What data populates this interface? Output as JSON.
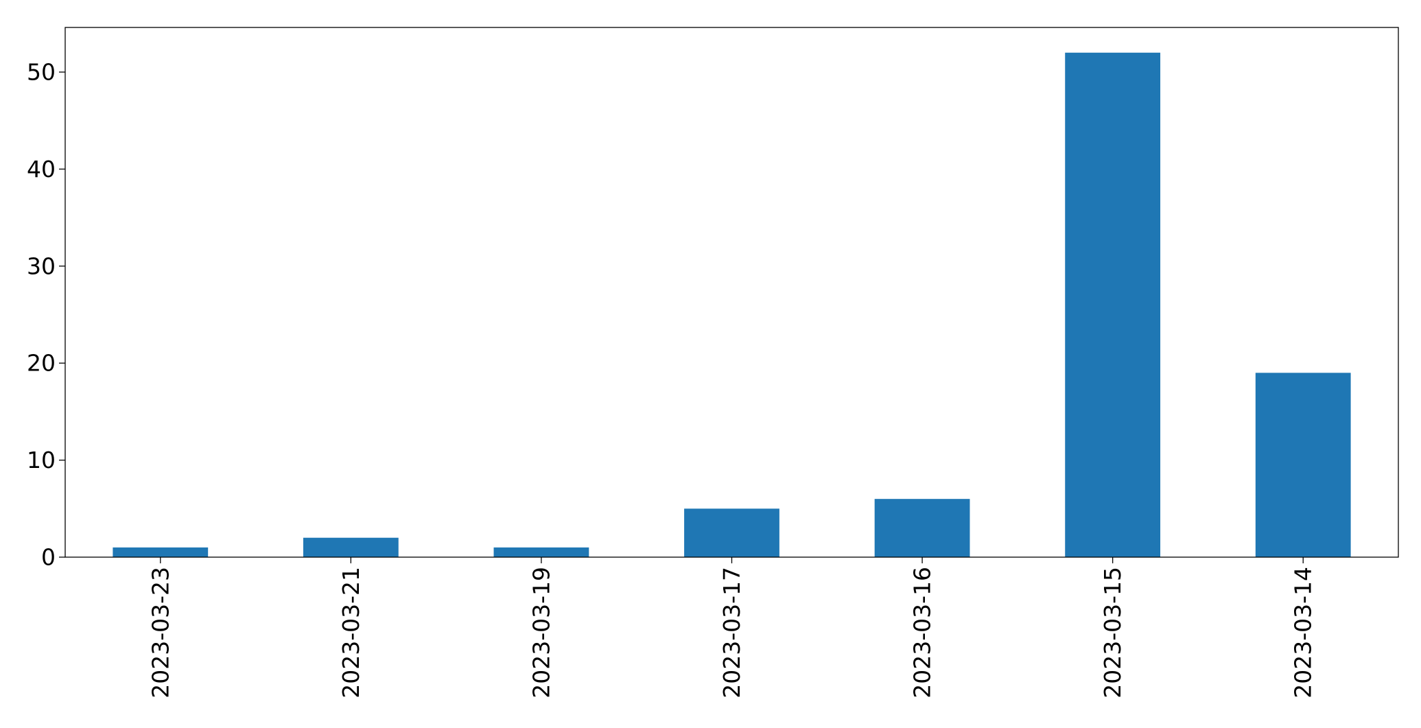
{
  "chart_data": {
    "type": "bar",
    "title": "",
    "xlabel": "",
    "ylabel": "",
    "categories": [
      "2023-03-23",
      "2023-03-21",
      "2023-03-19",
      "2023-03-17",
      "2023-03-16",
      "2023-03-15",
      "2023-03-14"
    ],
    "values": [
      1,
      2,
      1,
      5,
      6,
      52,
      19
    ],
    "ylim": [
      0,
      54.6
    ],
    "yticks": [
      0,
      10,
      20,
      30,
      40,
      50
    ],
    "bar_color": "#1f77b4",
    "grid": false,
    "legend": "none",
    "xtick_rotation": "vertical"
  }
}
